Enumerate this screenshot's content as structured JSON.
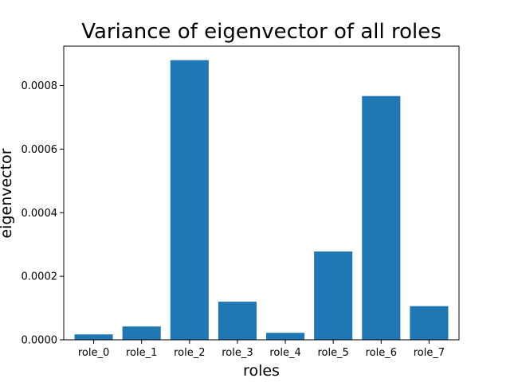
{
  "chart_data": {
    "type": "bar",
    "title": "Variance of eigenvector of all roles",
    "xlabel": "roles",
    "ylabel": "eigenvector",
    "categories": [
      "role_0",
      "role_1",
      "role_2",
      "role_3",
      "role_4",
      "role_5",
      "role_6",
      "role_7"
    ],
    "values": [
      1.7e-05,
      4.2e-05,
      0.00088,
      0.00012,
      2.2e-05,
      0.000278,
      0.000767,
      0.000106
    ],
    "ylim": [
      0,
      0.000924
    ],
    "yticks": [
      0,
      0.0002,
      0.0004,
      0.0006,
      0.0008
    ],
    "ytick_labels": [
      "0.0000",
      "0.0002",
      "0.0004",
      "0.0006",
      "0.0008"
    ],
    "bar_color": "#1f77b4",
    "grid": false,
    "legend": "none"
  }
}
